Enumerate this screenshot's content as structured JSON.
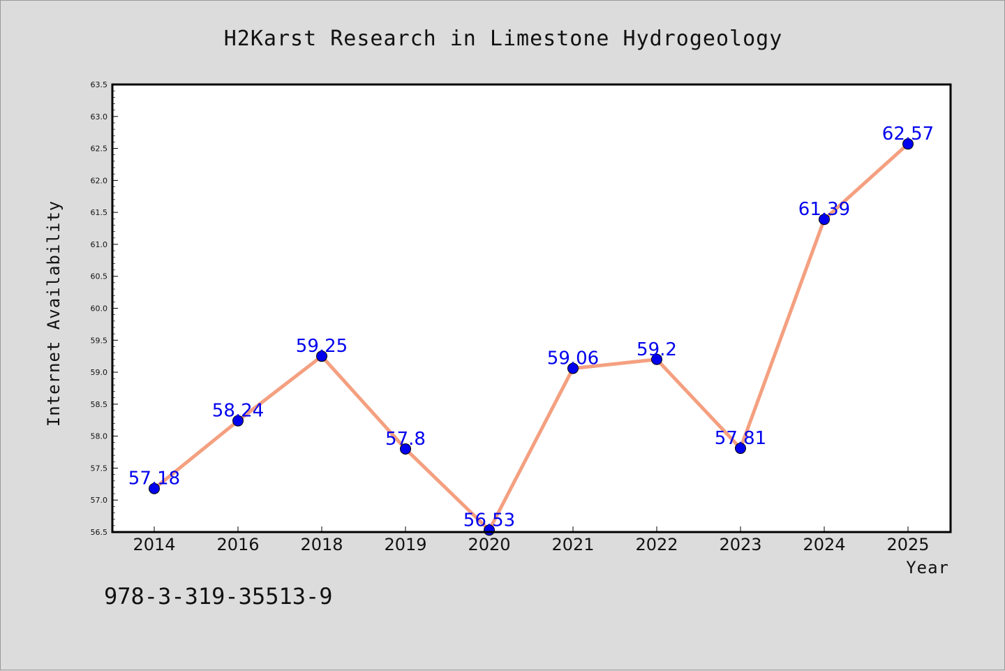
{
  "chart_data": {
    "type": "line",
    "title": "H2Karst Research in Limestone Hydrogeology",
    "xlabel": "Year",
    "ylabel": "Internet Availability",
    "categories": [
      "2014",
      "2016",
      "2018",
      "2019",
      "2020",
      "2021",
      "2022",
      "2023",
      "2024",
      "2025"
    ],
    "series": [
      {
        "values": [
          57.18,
          58.24,
          59.25,
          57.8,
          56.53,
          59.06,
          59.2,
          57.81,
          61.39,
          62.57
        ],
        "data_labels": [
          "57.18",
          "58.24",
          "59.25",
          "57.8",
          "56.53",
          "59.06",
          "59.2",
          "57.81",
          "61.39",
          "62.57"
        ],
        "line_color": "#f4a080",
        "marker_color": "#0000ee"
      }
    ],
    "ylim": [
      56.5,
      63.5
    ],
    "yticks": [
      "56.5",
      "57.0",
      "57.5",
      "58.0",
      "58.5",
      "59.0",
      "59.5",
      "60.0",
      "60.5",
      "61.0",
      "61.5",
      "62.0",
      "62.5",
      "63.0",
      "63.5"
    ],
    "grid": false,
    "legend": "none"
  },
  "annotation": "978-3-319-35513-9",
  "colors": {
    "background": "#dcdcdc",
    "plot_background": "#ffffff",
    "line": "#f4a080",
    "marker": "#0000ee",
    "data_label": "#0000ee"
  }
}
